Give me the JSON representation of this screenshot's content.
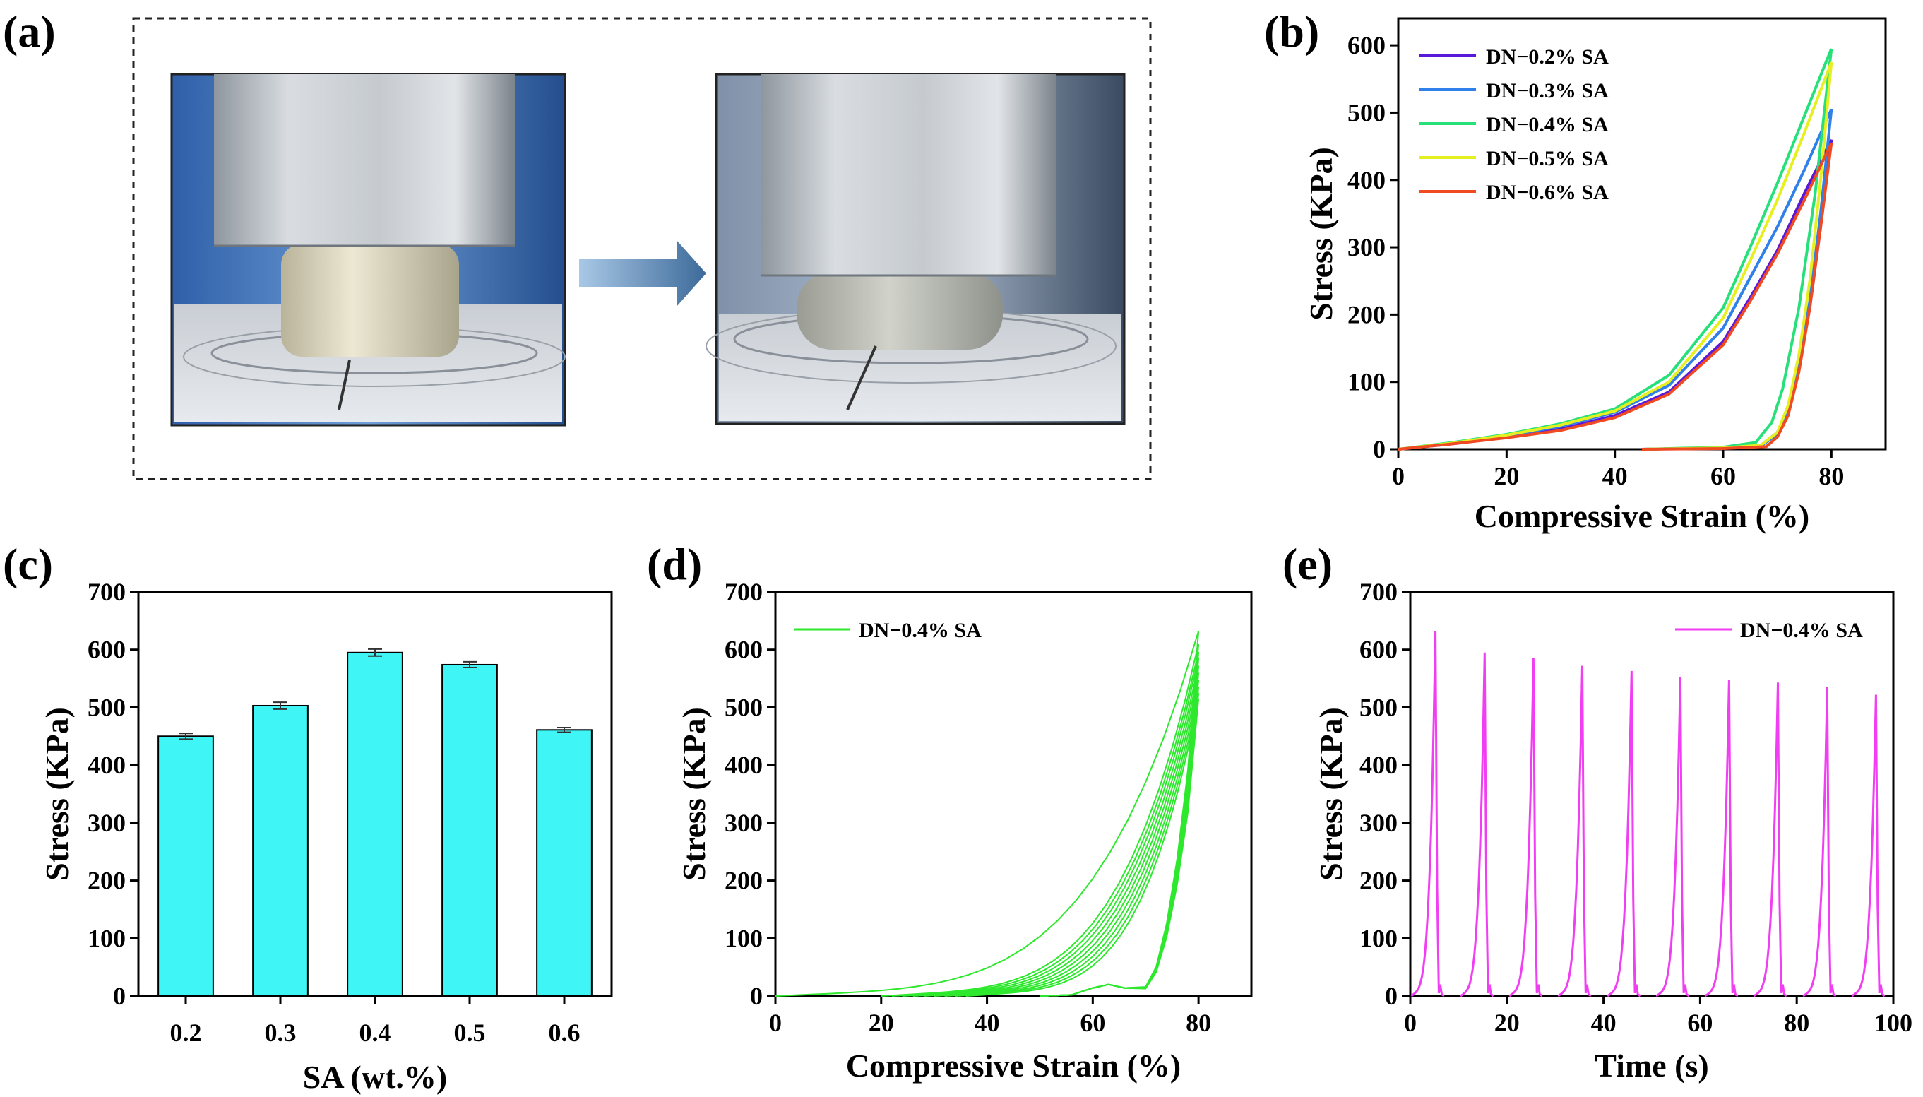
{
  "panel_labels": {
    "a": "(a)",
    "b": "(b)",
    "c": "(c)",
    "d": "(d)",
    "e": "(e)"
  },
  "colors": {
    "s02": "#5a18d8",
    "s03": "#2f80e8",
    "s04": "#28e07a",
    "s05": "#e6f020",
    "s06": "#f04a22",
    "bar": "#3ff5f5",
    "cyclic": "#2ee82e",
    "time": "#f23ef2"
  },
  "photo_panel": {
    "arrow": "arrow-right-icon",
    "photos": [
      "hydrogel-before-compression",
      "hydrogel-during-compression"
    ]
  },
  "chart_data": [
    {
      "panel": "b",
      "type": "line",
      "xlabel": "Compressive Strain (%)",
      "ylabel": "Stress (KPa)",
      "xlim": [
        0,
        90
      ],
      "ylim": [
        0,
        640
      ],
      "xticks": [
        0,
        20,
        40,
        60,
        80
      ],
      "yticks": [
        0,
        100,
        200,
        300,
        400,
        500,
        600
      ],
      "legend_position": "top-left",
      "series": [
        {
          "name": "DN−0.2% SA",
          "color": "#5a18d8",
          "loading": [
            [
              0,
              0
            ],
            [
              10,
              8
            ],
            [
              20,
              18
            ],
            [
              30,
              30
            ],
            [
              40,
              50
            ],
            [
              50,
              85
            ],
            [
              60,
              160
            ],
            [
              65,
              225
            ],
            [
              70,
              295
            ],
            [
              75,
              380
            ],
            [
              80,
              460
            ]
          ],
          "unloading": [
            [
              80,
              460
            ],
            [
              78,
              330
            ],
            [
              76,
              210
            ],
            [
              74,
              120
            ],
            [
              72,
              60
            ],
            [
              70,
              25
            ],
            [
              67,
              6
            ],
            [
              60,
              2
            ],
            [
              45,
              0
            ]
          ]
        },
        {
          "name": "DN−0.3% SA",
          "color": "#2f80e8",
          "loading": [
            [
              0,
              0
            ],
            [
              10,
              9
            ],
            [
              20,
              20
            ],
            [
              30,
              34
            ],
            [
              40,
              55
            ],
            [
              50,
              95
            ],
            [
              60,
              180
            ],
            [
              65,
              255
            ],
            [
              70,
              330
            ],
            [
              75,
              415
            ],
            [
              80,
              505
            ]
          ],
          "unloading": [
            [
              80,
              505
            ],
            [
              78,
              350
            ],
            [
              76,
              220
            ],
            [
              74,
              125
            ],
            [
              72,
              60
            ],
            [
              70,
              22
            ],
            [
              67,
              5
            ],
            [
              60,
              2
            ],
            [
              45,
              0
            ]
          ]
        },
        {
          "name": "DN−0.4% SA",
          "color": "#28e07a",
          "loading": [
            [
              0,
              0
            ],
            [
              10,
              10
            ],
            [
              20,
              22
            ],
            [
              30,
              38
            ],
            [
              40,
              60
            ],
            [
              50,
              110
            ],
            [
              60,
              210
            ],
            [
              65,
              300
            ],
            [
              70,
              395
            ],
            [
              75,
              495
            ],
            [
              80,
              595
            ]
          ],
          "unloading": [
            [
              80,
              595
            ],
            [
              77,
              380
            ],
            [
              74,
              210
            ],
            [
              71,
              90
            ],
            [
              69,
              40
            ],
            [
              66,
              10
            ],
            [
              60,
              3
            ],
            [
              45,
              0
            ]
          ]
        },
        {
          "name": "DN−0.5% SA",
          "color": "#e6f020",
          "loading": [
            [
              0,
              0
            ],
            [
              10,
              9
            ],
            [
              20,
              21
            ],
            [
              30,
              36
            ],
            [
              40,
              57
            ],
            [
              50,
              100
            ],
            [
              60,
              195
            ],
            [
              65,
              280
            ],
            [
              70,
              370
            ],
            [
              75,
              470
            ],
            [
              80,
              575
            ]
          ],
          "unloading": [
            [
              80,
              575
            ],
            [
              78,
              400
            ],
            [
              76,
              250
            ],
            [
              74,
              140
            ],
            [
              72,
              65
            ],
            [
              70,
              25
            ],
            [
              67,
              6
            ],
            [
              60,
              2
            ],
            [
              45,
              0
            ]
          ]
        },
        {
          "name": "DN−0.6% SA",
          "color": "#f04a22",
          "loading": [
            [
              0,
              0
            ],
            [
              10,
              8
            ],
            [
              20,
              17
            ],
            [
              30,
              28
            ],
            [
              40,
              47
            ],
            [
              50,
              82
            ],
            [
              60,
              155
            ],
            [
              65,
              220
            ],
            [
              70,
              290
            ],
            [
              75,
              370
            ],
            [
              80,
              455
            ]
          ],
          "unloading": [
            [
              80,
              455
            ],
            [
              78,
              330
            ],
            [
              76,
              210
            ],
            [
              74,
              115
            ],
            [
              72,
              50
            ],
            [
              70,
              18
            ],
            [
              68,
              4
            ],
            [
              60,
              1
            ],
            [
              45,
              0
            ]
          ]
        }
      ]
    },
    {
      "panel": "c",
      "type": "bar",
      "xlabel": "SA (wt.%)",
      "ylabel": "Stress (KPa)",
      "ylim": [
        0,
        700
      ],
      "yticks": [
        0,
        100,
        200,
        300,
        400,
        500,
        600,
        700
      ],
      "categories": [
        "0.2",
        "0.3",
        "0.4",
        "0.5",
        "0.6"
      ],
      "values": [
        450,
        503,
        595,
        574,
        461
      ],
      "errors": [
        5,
        6,
        6,
        5,
        4
      ]
    },
    {
      "panel": "d",
      "type": "line",
      "xlabel": "Compressive Strain (%)",
      "ylabel": "Stress (KPa)",
      "xlim": [
        0,
        90
      ],
      "ylim": [
        0,
        700
      ],
      "xticks": [
        0,
        20,
        40,
        60,
        80
      ],
      "yticks": [
        0,
        100,
        200,
        300,
        400,
        500,
        600,
        700
      ],
      "legend_position": "top-left",
      "series": [
        {
          "name": "DN−0.4% SA",
          "color": "#2ee82e",
          "cycles": [
            {
              "start": 0,
              "peak": 632
            },
            {
              "start": 20,
              "peak": 610
            },
            {
              "start": 22,
              "peak": 596
            },
            {
              "start": 24,
              "peak": 585
            },
            {
              "start": 26,
              "peak": 572
            },
            {
              "start": 28,
              "peak": 560
            },
            {
              "start": 30,
              "peak": 548
            },
            {
              "start": 32,
              "peak": 536
            },
            {
              "start": 34,
              "peak": 525
            },
            {
              "start": 36,
              "peak": 515
            }
          ]
        }
      ]
    },
    {
      "panel": "e",
      "type": "line",
      "xlabel": "Time (s)",
      "ylabel": "Stress (KPa)",
      "xlim": [
        0,
        100
      ],
      "ylim": [
        0,
        700
      ],
      "xticks": [
        0,
        20,
        40,
        60,
        80,
        100
      ],
      "yticks": [
        0,
        100,
        200,
        300,
        400,
        500,
        600,
        700
      ],
      "legend_position": "top-right",
      "series": [
        {
          "name": "DN−0.4% SA",
          "color": "#f23ef2",
          "peak_times": [
            5.2,
            15.4,
            25.5,
            35.6,
            45.8,
            55.9,
            66.0,
            76.1,
            86.3,
            96.4
          ],
          "peak_values": [
            632,
            595,
            585,
            572,
            563,
            553,
            548,
            543,
            535,
            522
          ]
        }
      ]
    }
  ]
}
